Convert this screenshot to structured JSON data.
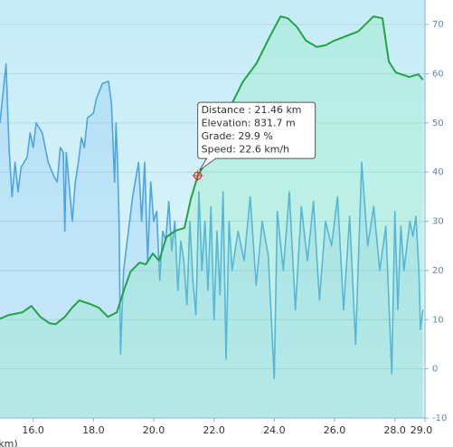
{
  "chart_data": {
    "type": "line",
    "x_label": "(km)",
    "xlim": [
      14.9,
      29.0
    ],
    "xticks": [
      {
        "value": 16,
        "label": "16.0"
      },
      {
        "value": 18,
        "label": "18.0"
      },
      {
        "value": 20,
        "label": "20.0"
      },
      {
        "value": 22,
        "label": "22.0"
      },
      {
        "value": 24,
        "label": "24.0"
      },
      {
        "value": 26,
        "label": "26.0"
      },
      {
        "value": 28,
        "label": "28.0"
      },
      {
        "value": 29,
        "label": "29.0"
      }
    ],
    "ylim": [
      -10,
      75
    ],
    "yticks": [
      -10,
      0,
      10,
      20,
      30,
      40,
      50,
      60,
      70
    ],
    "y2lim": [
      300,
      1217
    ],
    "grid": true,
    "series": [
      {
        "name": "Elevation",
        "axis": "y2",
        "color": "#22a344",
        "fill": "rgba(120,235,170,0.25)",
        "x": [
          14.9,
          15.2,
          15.65,
          15.94,
          16.24,
          16.54,
          16.75,
          17.05,
          17.29,
          17.53,
          17.89,
          18.18,
          18.48,
          18.78,
          19.02,
          19.23,
          19.53,
          19.74,
          19.97,
          20.18,
          20.42,
          20.72,
          21.02,
          21.23,
          21.46,
          21.91,
          22.51,
          22.96,
          23.41,
          23.86,
          24.21,
          24.45,
          24.75,
          25.05,
          25.41,
          25.71,
          26.0,
          26.39,
          26.78,
          27.08,
          27.29,
          27.59,
          27.8,
          28.03,
          28.48,
          28.78,
          28.93
        ],
        "values": [
          518,
          526,
          532,
          546,
          522,
          508,
          506,
          522,
          542,
          558,
          550,
          542,
          522,
          532,
          582,
          621,
          641,
          637,
          661,
          645,
          697,
          711,
          717,
          780,
          831.7,
          880,
          979,
          1038,
          1078,
          1138,
          1181,
          1177,
          1158,
          1128,
          1114,
          1118,
          1128,
          1138,
          1148,
          1167,
          1181,
          1177,
          1082,
          1058,
          1048,
          1054,
          1042
        ]
      },
      {
        "name": "Speed",
        "color": "#4ea4e6",
        "fill": "rgba(110,180,240,0.22)",
        "x": [
          14.9,
          15.0,
          15.1,
          15.2,
          15.3,
          15.4,
          15.5,
          15.6,
          15.8,
          15.9,
          16.0,
          16.1,
          16.3,
          16.5,
          16.7,
          16.8,
          16.9,
          17.0,
          17.05,
          17.1,
          17.3,
          17.4,
          17.5,
          17.6,
          17.7,
          17.8,
          18.0,
          18.1,
          18.3,
          18.5,
          18.6,
          18.7,
          18.75,
          18.8,
          18.85,
          18.9,
          19.0,
          19.1,
          19.3,
          19.5,
          19.6,
          19.7,
          19.8,
          19.9,
          20.0,
          20.1,
          20.2,
          20.3,
          20.4,
          20.5,
          20.6,
          20.7,
          20.8,
          20.9,
          21.0,
          21.1,
          21.2,
          21.3,
          21.4,
          21.5,
          21.6,
          21.7,
          21.8,
          21.9,
          22.0,
          22.1,
          22.2,
          22.3,
          22.4,
          22.5,
          22.6,
          22.8,
          23.0,
          23.2,
          23.4,
          23.6,
          23.8,
          24.0,
          24.1,
          24.3,
          24.5,
          24.7,
          24.9,
          25.1,
          25.3,
          25.5,
          25.7,
          25.9,
          26.1,
          26.3,
          26.5,
          26.7,
          26.9,
          27.1,
          27.3,
          27.5,
          27.7,
          27.9,
          28.0,
          28.1,
          28.2,
          28.3,
          28.5,
          28.6,
          28.7,
          28.8,
          28.85,
          28.93
        ],
        "values": [
          50,
          56,
          62,
          45,
          35,
          42,
          36,
          41,
          43,
          48,
          45,
          50,
          48,
          42,
          39,
          38,
          45,
          44,
          28,
          44,
          30,
          38,
          42,
          47,
          45,
          51,
          52,
          55,
          58,
          58.5,
          54,
          38,
          50,
          42,
          30,
          3,
          20,
          25,
          35,
          42,
          30,
          42,
          22,
          38,
          30,
          32,
          18,
          28,
          26,
          34,
          24,
          30,
          16,
          26,
          22,
          13,
          30,
          18,
          11,
          36,
          20,
          30,
          16,
          33,
          10,
          28,
          15,
          36,
          2,
          30,
          20,
          28,
          22,
          35,
          17,
          30,
          23,
          -2,
          32,
          20,
          36,
          12,
          33,
          22,
          34,
          14,
          30,
          25,
          35,
          12,
          31,
          5,
          42,
          25,
          33,
          20,
          29,
          -1,
          32,
          12,
          29,
          20,
          30,
          27,
          31,
          20,
          8,
          12
        ]
      }
    ],
    "annotation": {
      "x": 21.46,
      "y": 831.7,
      "axis": "y2",
      "lines": [
        "Distance : 21.46 km",
        "Elevation: 831.7 m",
        "Grade: 29.9 %",
        "Speed: 22.6 km/h"
      ]
    }
  }
}
